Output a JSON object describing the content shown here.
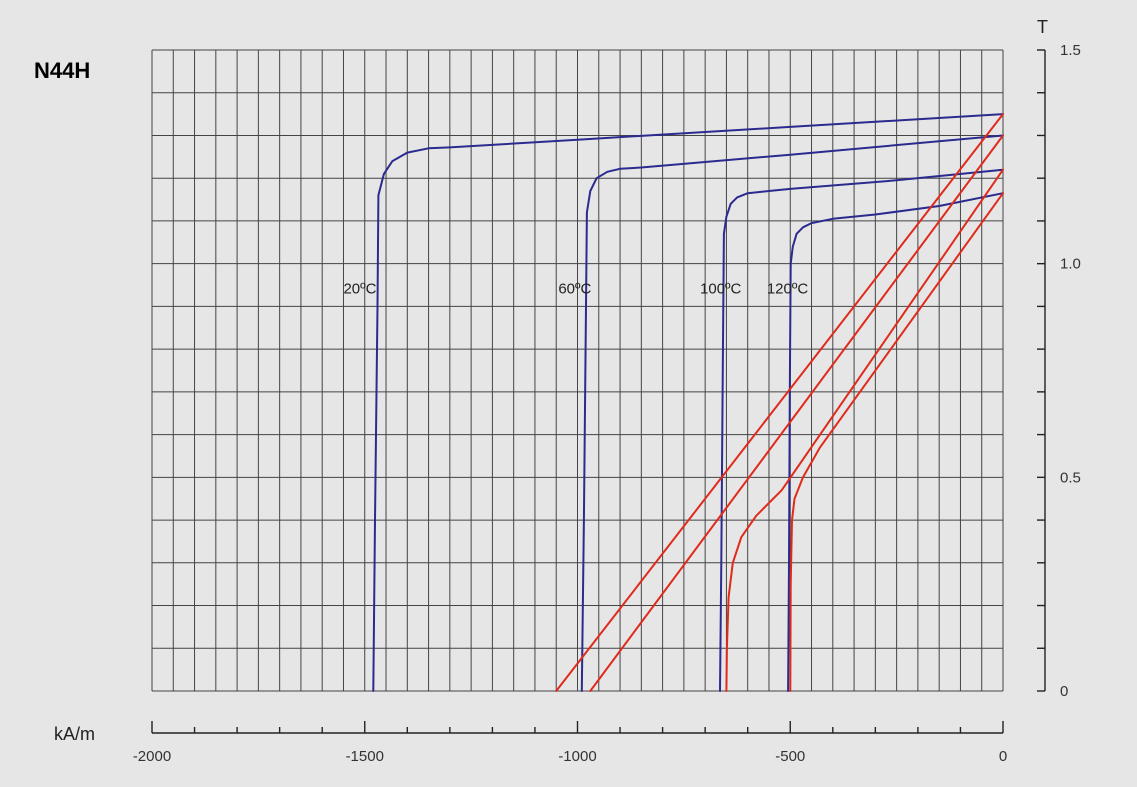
{
  "chart_data": {
    "type": "line",
    "title": "N44H",
    "xlabel": "kA/m",
    "ylabel": "T",
    "xlim": [
      -2000,
      0
    ],
    "ylim": [
      0,
      1.5
    ],
    "x_ticks": [
      -2000,
      -1500,
      -1000,
      -500,
      0
    ],
    "x_tick_labels": [
      "-2000",
      "-1500",
      "-1000",
      "-500",
      "0"
    ],
    "y_ticks": [
      0,
      0.5,
      1.0,
      1.5
    ],
    "y_tick_labels": [
      "0",
      "0.5",
      "1.0",
      "1.5"
    ],
    "grid": true,
    "grid_x_step": 50,
    "grid_y_step": 0.1,
    "colors": {
      "J_curves": "#2b2a8e",
      "B_curves": "#e02a1a",
      "background": "#e6e6e6",
      "grid": "#444444"
    },
    "series": [
      {
        "name": "20ºC",
        "kind": "J",
        "x": [
          -1480,
          -1476,
          -1470,
          -1468,
          -1455,
          -1435,
          -1400,
          -1350,
          -1300,
          -1000,
          -500,
          0
        ],
        "y": [
          0,
          0.4,
          0.9,
          1.16,
          1.21,
          1.24,
          1.26,
          1.27,
          1.272,
          1.29,
          1.32,
          1.35
        ]
      },
      {
        "name": "60ºC",
        "kind": "J",
        "x": [
          -990,
          -985,
          -980,
          -978,
          -970,
          -955,
          -930,
          -900,
          -850,
          -500,
          0
        ],
        "y": [
          0,
          0.4,
          0.9,
          1.12,
          1.17,
          1.2,
          1.215,
          1.222,
          1.225,
          1.255,
          1.3
        ]
      },
      {
        "name": "100ºC",
        "kind": "J",
        "x": [
          -665,
          -662,
          -659,
          -656,
          -650,
          -640,
          -625,
          -600,
          -550,
          -500,
          -250,
          0
        ],
        "y": [
          0,
          0.3,
          0.7,
          1.07,
          1.11,
          1.14,
          1.155,
          1.165,
          1.17,
          1.175,
          1.195,
          1.22
        ]
      },
      {
        "name": "120ºC",
        "kind": "J",
        "x": [
          -505,
          -503,
          -501,
          -499,
          -494,
          -485,
          -470,
          -450,
          -400,
          -300,
          -150,
          0
        ],
        "y": [
          0,
          0.3,
          0.7,
          1.0,
          1.04,
          1.07,
          1.085,
          1.095,
          1.105,
          1.115,
          1.135,
          1.165
        ]
      },
      {
        "kind": "B",
        "x": [
          -1050,
          0
        ],
        "y": [
          0,
          1.35
        ]
      },
      {
        "kind": "B",
        "x": [
          -970,
          0
        ],
        "y": [
          0,
          1.3
        ]
      },
      {
        "kind": "B",
        "x": [
          -650,
          -649,
          -645,
          -635,
          -615,
          -580,
          -520,
          0
        ],
        "y": [
          0,
          0.1,
          0.22,
          0.3,
          0.36,
          0.41,
          0.47,
          1.22
        ]
      },
      {
        "kind": "B",
        "x": [
          -500,
          -499,
          -496,
          -490,
          -470,
          -430,
          0
        ],
        "y": [
          0,
          0.25,
          0.4,
          0.45,
          0.5,
          0.57,
          1.165
        ]
      }
    ],
    "curve_labels": [
      {
        "text": "20ºC",
        "x": -1550,
        "y": 0.93
      },
      {
        "text": "60ºC",
        "x": -1045,
        "y": 0.93
      },
      {
        "text": "100ºC",
        "x": -712,
        "y": 0.93
      },
      {
        "text": "120ºC",
        "x": -555,
        "y": 0.93
      }
    ]
  }
}
